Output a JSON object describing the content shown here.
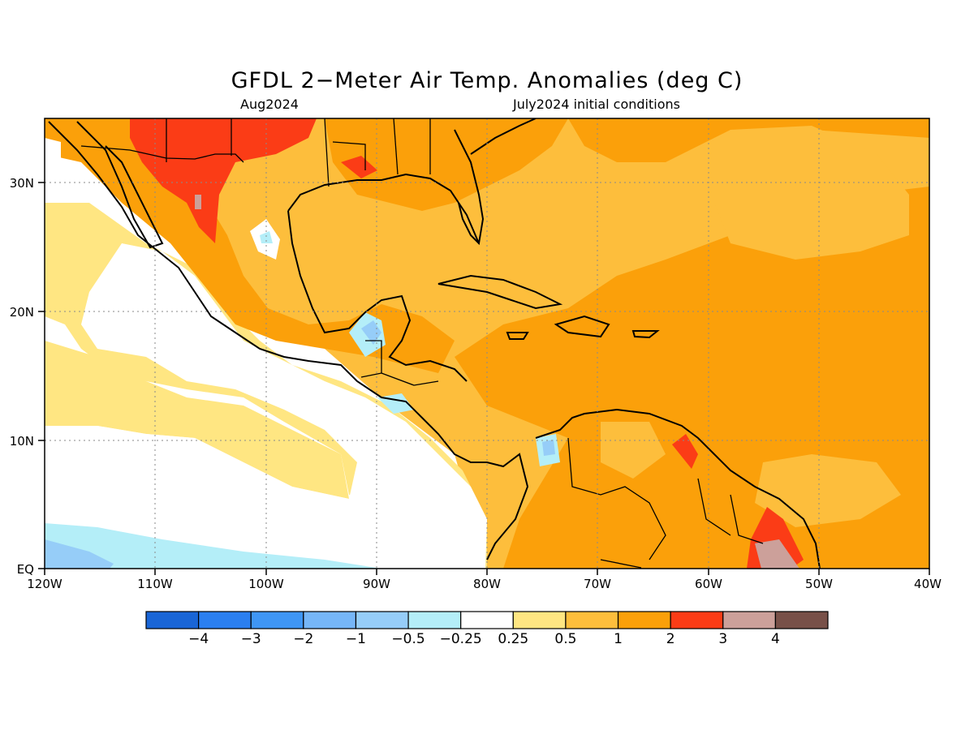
{
  "title": "GFDL 2−Meter Air Temp. Anomalies (deg C)",
  "subtitle_left": "Aug2024",
  "subtitle_right": "July2024 initial conditions",
  "map": {
    "lon_labels": [
      "120W",
      "110W",
      "100W",
      "90W",
      "80W",
      "70W",
      "60W",
      "50W",
      "40W"
    ],
    "lat_labels": [
      "EQ",
      "10N",
      "20N",
      "30N"
    ],
    "lon_range": [
      -120,
      -40
    ],
    "lat_range": [
      0,
      35
    ],
    "gridlines": true
  },
  "colorbar": {
    "labels": [
      "−4",
      "−3",
      "−2",
      "−1",
      "−0.5",
      "−0.25",
      "0.25",
      "0.5",
      "1",
      "2",
      "3",
      "4"
    ],
    "colors": [
      "#1965d6",
      "#2b7ff0",
      "#3f96f5",
      "#76b6f7",
      "#96cdf8",
      "#b4eef8",
      "#ffffff",
      "#ffe682",
      "#fdbe3c",
      "#fba00a",
      "#fb3c16",
      "#cca09a",
      "#785048"
    ]
  },
  "anomaly_colors": {
    "strong_positive": "#fb3c16",
    "positive": "#fba00a",
    "weak_positive": "#fdbe3c",
    "slight_positive": "#ffe682",
    "near_zero": "#ffffff",
    "slight_negative": "#b4eef8",
    "negative": "#96cdf8",
    "extreme_positive": "#cca09a"
  }
}
